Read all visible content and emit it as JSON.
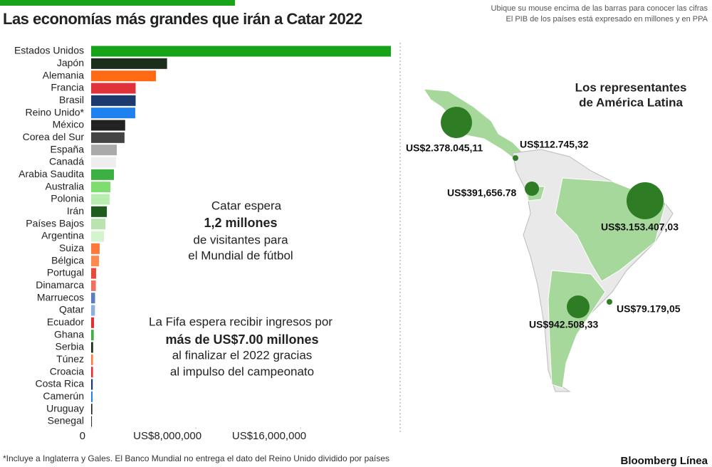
{
  "chart_data": {
    "type": "hbar",
    "title": "Las economías más grandes  que irán a Catar 2022",
    "categories": [
      "Estados Unidos",
      "Japón",
      "Alemania",
      "Francia",
      "Brasil",
      "Reino Unido*",
      "México",
      "Corea del Sur",
      "España",
      "Canadá",
      "Arabia Saudita",
      "Australia",
      "Polonia",
      "Irán",
      "Países Bajos",
      "Argentina",
      "Suiza",
      "Bélgica",
      "Portugal",
      "Dinamarca",
      "Marruecos",
      "Qatar",
      "Ecuador",
      "Ghana",
      "Serbia",
      "Túnez",
      "Croacia",
      "Costa Rica",
      "Camerún",
      "Uruguay",
      "Senegal"
    ],
    "values": [
      22900000,
      5800000,
      4950000,
      3400000,
      3400000,
      3370000,
      2600000,
      2550000,
      1960000,
      1900000,
      1740000,
      1470000,
      1410000,
      1200000,
      1090000,
      980000,
      650000,
      600000,
      380000,
      360000,
      300000,
      290000,
      220000,
      200000,
      150000,
      140000,
      140000,
      120000,
      110000,
      90000,
      60000
    ],
    "colors": [
      "#18a418",
      "#1b2e1b",
      "#ff6a13",
      "#e0323a",
      "#1d3a6e",
      "#1f80f0",
      "#222222",
      "#444444",
      "#aaaaaa",
      "#eeeeee",
      "#3cb043",
      "#7fdc6f",
      "#b8edb0",
      "#1f5c1f",
      "#b9e4b0",
      "#d6f3d0",
      "#ff7a3a",
      "#ff8a50",
      "#e84a3a",
      "#f07060",
      "#5a7fc0",
      "#8ab0e0",
      "#e03030",
      "#3cb043",
      "#1b2e1b",
      "#ff7a3a",
      "#e03030",
      "#1d3a6e",
      "#1f80f0",
      "#222222",
      "#333333"
    ],
    "xlim": [
      0,
      22900000
    ],
    "xticks": [
      0,
      {
        "value": 8000000,
        "label": "US$8,000,000"
      },
      {
        "value": 16000000,
        "label": "US$16,000,000"
      }
    ]
  },
  "header_note": [
    "Ubique su mouse encima de las barras para conocer las cifras",
    "El PIB de los países está expresado en millones y en PPA"
  ],
  "annotations": [
    [
      "Catar espera",
      "1,2 millones",
      "de visitantes para",
      "el Mundial de fútbol"
    ],
    [
      "La Fifa espera recibir ingresos por",
      "más de US$7.00 millones",
      "al finalizar el 2022 gracias",
      "al impulso del campeonato"
    ]
  ],
  "map": {
    "title": [
      "Los representantes",
      "de América Latina"
    ],
    "labels": [
      "US$2.378.045,11",
      "US$112.745,32",
      "US$391,656.78",
      "US$3.153.407,03",
      "US$79.179,05",
      "US$942.508,33"
    ]
  },
  "footnote": "*Incluye a Inglaterra y Gales. El Banco Mundial no entrega el dato del Reino Unido dividido por países",
  "brand": "Bloomberg Línea"
}
